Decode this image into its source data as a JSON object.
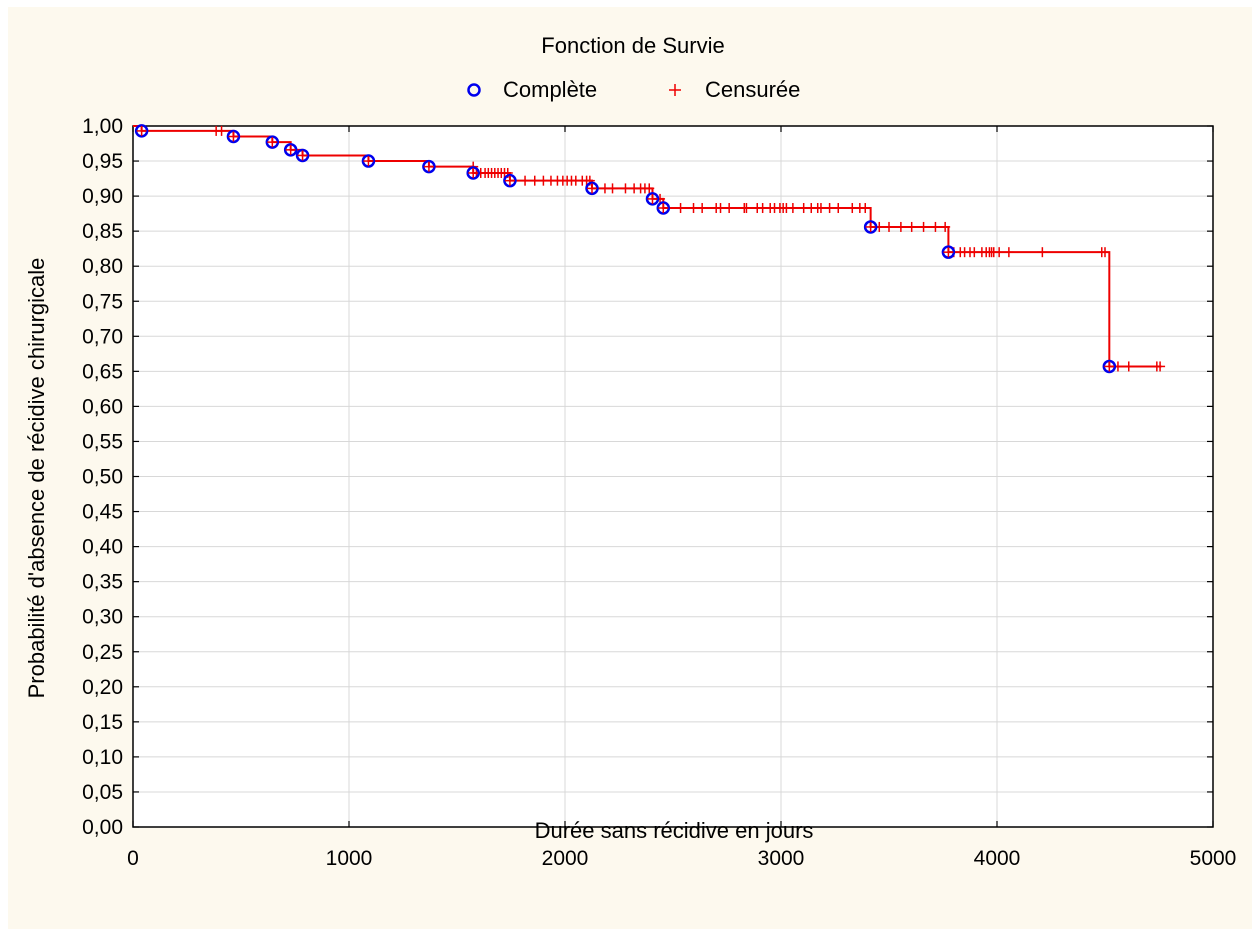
{
  "chart_data": {
    "type": "line",
    "title": "Fonction de Survie",
    "xlabel": "Durée sans récidive en jours",
    "ylabel": "Probabilité d'absence de récidive chirurgicale",
    "xlim": [
      0,
      5000
    ],
    "ylim": [
      0,
      1
    ],
    "x_ticks": [
      "0",
      "1000",
      "2000",
      "3000",
      "4000",
      "5000"
    ],
    "y_ticks": [
      "0,00",
      "0,05",
      "0,10",
      "0,15",
      "0,20",
      "0,25",
      "0,30",
      "0,35",
      "0,40",
      "0,45",
      "0,50",
      "0,55",
      "0,60",
      "0,65",
      "0,70",
      "0,75",
      "0,80",
      "0,85",
      "0,90",
      "0,95",
      "1,00"
    ],
    "grid": true,
    "legend": {
      "position": "top",
      "entries": [
        {
          "name": "Complète",
          "marker": "circle",
          "color": "#0000ee"
        },
        {
          "name": "Censurée",
          "marker": "plus",
          "color": "#ee0000"
        }
      ]
    },
    "colors": {
      "background": "#fdf9ee",
      "plot_area": "#ffffff",
      "curve": "#ee0000",
      "complete": "#0000ee",
      "grid": "#d8d8d8"
    },
    "steps": [
      [
        0,
        1.0
      ],
      [
        40,
        0.993
      ],
      [
        465,
        0.985
      ],
      [
        645,
        0.977
      ],
      [
        730,
        0.966
      ],
      [
        785,
        0.958
      ],
      [
        1090,
        0.95
      ],
      [
        1370,
        0.942
      ],
      [
        1575,
        0.933
      ],
      [
        1745,
        0.922
      ],
      [
        2125,
        0.911
      ],
      [
        2405,
        0.896
      ],
      [
        2455,
        0.883
      ],
      [
        3415,
        0.856
      ],
      [
        3775,
        0.82
      ],
      [
        4520,
        0.657
      ],
      [
        4760,
        0.657
      ]
    ],
    "complete_events": [
      {
        "x": 40,
        "y": 0.993
      },
      {
        "x": 465,
        "y": 0.985
      },
      {
        "x": 645,
        "y": 0.977
      },
      {
        "x": 730,
        "y": 0.966
      },
      {
        "x": 785,
        "y": 0.958
      },
      {
        "x": 1090,
        "y": 0.95
      },
      {
        "x": 1370,
        "y": 0.942
      },
      {
        "x": 1575,
        "y": 0.933
      },
      {
        "x": 1745,
        "y": 0.922
      },
      {
        "x": 2125,
        "y": 0.911
      },
      {
        "x": 2405,
        "y": 0.896
      },
      {
        "x": 2455,
        "y": 0.883
      },
      {
        "x": 3415,
        "y": 0.856
      },
      {
        "x": 3775,
        "y": 0.82
      },
      {
        "x": 4520,
        "y": 0.657
      }
    ],
    "censored_events": [
      {
        "x": 385,
        "y": 0.993
      },
      {
        "x": 410,
        "y": 0.993
      },
      {
        "x": 1575,
        "y": 0.942
      },
      {
        "x": 1590,
        "y": 0.933
      },
      {
        "x": 1610,
        "y": 0.933
      },
      {
        "x": 1630,
        "y": 0.933
      },
      {
        "x": 1645,
        "y": 0.933
      },
      {
        "x": 1660,
        "y": 0.933
      },
      {
        "x": 1675,
        "y": 0.933
      },
      {
        "x": 1690,
        "y": 0.933
      },
      {
        "x": 1705,
        "y": 0.933
      },
      {
        "x": 1720,
        "y": 0.933
      },
      {
        "x": 1735,
        "y": 0.933
      },
      {
        "x": 1815,
        "y": 0.922
      },
      {
        "x": 1860,
        "y": 0.922
      },
      {
        "x": 1900,
        "y": 0.922
      },
      {
        "x": 1935,
        "y": 0.922
      },
      {
        "x": 1965,
        "y": 0.922
      },
      {
        "x": 1990,
        "y": 0.922
      },
      {
        "x": 2010,
        "y": 0.922
      },
      {
        "x": 2030,
        "y": 0.922
      },
      {
        "x": 2050,
        "y": 0.922
      },
      {
        "x": 2080,
        "y": 0.922
      },
      {
        "x": 2100,
        "y": 0.922
      },
      {
        "x": 2115,
        "y": 0.922
      },
      {
        "x": 2185,
        "y": 0.911
      },
      {
        "x": 2220,
        "y": 0.911
      },
      {
        "x": 2280,
        "y": 0.911
      },
      {
        "x": 2320,
        "y": 0.911
      },
      {
        "x": 2350,
        "y": 0.911
      },
      {
        "x": 2370,
        "y": 0.911
      },
      {
        "x": 2390,
        "y": 0.911
      },
      {
        "x": 2440,
        "y": 0.896
      },
      {
        "x": 2535,
        "y": 0.883
      },
      {
        "x": 2595,
        "y": 0.883
      },
      {
        "x": 2635,
        "y": 0.883
      },
      {
        "x": 2700,
        "y": 0.883
      },
      {
        "x": 2720,
        "y": 0.883
      },
      {
        "x": 2760,
        "y": 0.883
      },
      {
        "x": 2830,
        "y": 0.883
      },
      {
        "x": 2840,
        "y": 0.883
      },
      {
        "x": 2890,
        "y": 0.883
      },
      {
        "x": 2915,
        "y": 0.883
      },
      {
        "x": 2950,
        "y": 0.883
      },
      {
        "x": 2970,
        "y": 0.883
      },
      {
        "x": 2995,
        "y": 0.883
      },
      {
        "x": 3010,
        "y": 0.883
      },
      {
        "x": 3025,
        "y": 0.883
      },
      {
        "x": 3055,
        "y": 0.883
      },
      {
        "x": 3105,
        "y": 0.883
      },
      {
        "x": 3140,
        "y": 0.883
      },
      {
        "x": 3170,
        "y": 0.883
      },
      {
        "x": 3185,
        "y": 0.883
      },
      {
        "x": 3225,
        "y": 0.883
      },
      {
        "x": 3265,
        "y": 0.883
      },
      {
        "x": 3330,
        "y": 0.883
      },
      {
        "x": 3365,
        "y": 0.883
      },
      {
        "x": 3390,
        "y": 0.883
      },
      {
        "x": 3455,
        "y": 0.856
      },
      {
        "x": 3500,
        "y": 0.856
      },
      {
        "x": 3555,
        "y": 0.856
      },
      {
        "x": 3605,
        "y": 0.856
      },
      {
        "x": 3660,
        "y": 0.856
      },
      {
        "x": 3715,
        "y": 0.856
      },
      {
        "x": 3760,
        "y": 0.856
      },
      {
        "x": 3800,
        "y": 0.82
      },
      {
        "x": 3830,
        "y": 0.82
      },
      {
        "x": 3850,
        "y": 0.82
      },
      {
        "x": 3875,
        "y": 0.82
      },
      {
        "x": 3895,
        "y": 0.82
      },
      {
        "x": 3930,
        "y": 0.82
      },
      {
        "x": 3950,
        "y": 0.82
      },
      {
        "x": 3965,
        "y": 0.82
      },
      {
        "x": 3975,
        "y": 0.82
      },
      {
        "x": 3985,
        "y": 0.82
      },
      {
        "x": 4010,
        "y": 0.82
      },
      {
        "x": 4055,
        "y": 0.82
      },
      {
        "x": 4210,
        "y": 0.82
      },
      {
        "x": 4485,
        "y": 0.82
      },
      {
        "x": 4500,
        "y": 0.82
      },
      {
        "x": 4560,
        "y": 0.657
      },
      {
        "x": 4610,
        "y": 0.657
      },
      {
        "x": 4740,
        "y": 0.657
      },
      {
        "x": 4755,
        "y": 0.657
      }
    ]
  }
}
